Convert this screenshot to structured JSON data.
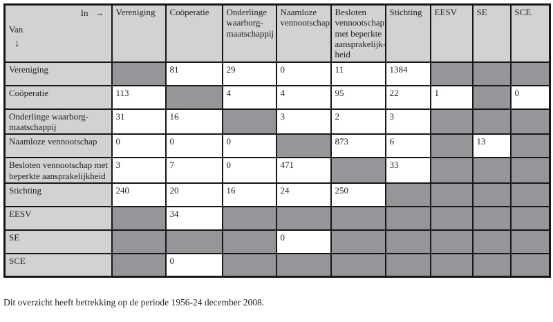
{
  "page": {
    "footer_note": "Dit overzicht heeft betrekking op de periode 1956-24 december 2008."
  },
  "colors": {
    "header_bg": "#d2d2d2",
    "blocked_cell_bg": "#95959a",
    "value_cell_bg": "#ffffff",
    "border": "#161616"
  },
  "table": {
    "corner": {
      "in_label": "In",
      "in_arrow": "→",
      "van_label": "Van",
      "van_arrow": "↓"
    },
    "columns": [
      "Vereniging",
      "Coöperatie",
      "Onderlinge waarborg-maatschappij",
      "Naamloze vennootschap",
      "Besloten vennootschap met beperkte aansprakelijk-heid",
      "Stichting",
      "EESV",
      "SE",
      "SCE"
    ],
    "rows": [
      {
        "label": "Vereniging",
        "cells": [
          null,
          "81",
          "29",
          "0",
          "11",
          "1384",
          null,
          null,
          null
        ]
      },
      {
        "label": "Coöperatie",
        "cells": [
          "113",
          null,
          "4",
          "4",
          "95",
          "22",
          "1",
          null,
          "0"
        ]
      },
      {
        "label": "Onderlinge waarborg-maatschappij",
        "cells": [
          "31",
          "16",
          null,
          "3",
          "2",
          "3",
          null,
          null,
          null
        ]
      },
      {
        "label": "Naamloze vennootschap",
        "cells": [
          "0",
          "0",
          "0",
          null,
          "873",
          "6",
          null,
          "13",
          null
        ]
      },
      {
        "label": "Besloten vennootschap met beperkte aansprakelijkheid",
        "cells": [
          "3",
          "7",
          "0",
          "471",
          null,
          "33",
          null,
          null,
          null
        ]
      },
      {
        "label": "Stichting",
        "cells": [
          "240",
          "20",
          "16",
          "24",
          "250",
          null,
          null,
          null,
          null
        ]
      },
      {
        "label": "EESV",
        "cells": [
          null,
          "34",
          null,
          null,
          null,
          null,
          null,
          null,
          null
        ]
      },
      {
        "label": "SE",
        "cells": [
          null,
          null,
          null,
          "0",
          null,
          null,
          null,
          null,
          null
        ]
      },
      {
        "label": "SCE",
        "cells": [
          null,
          "0",
          null,
          null,
          null,
          null,
          null,
          null,
          null
        ]
      }
    ]
  }
}
